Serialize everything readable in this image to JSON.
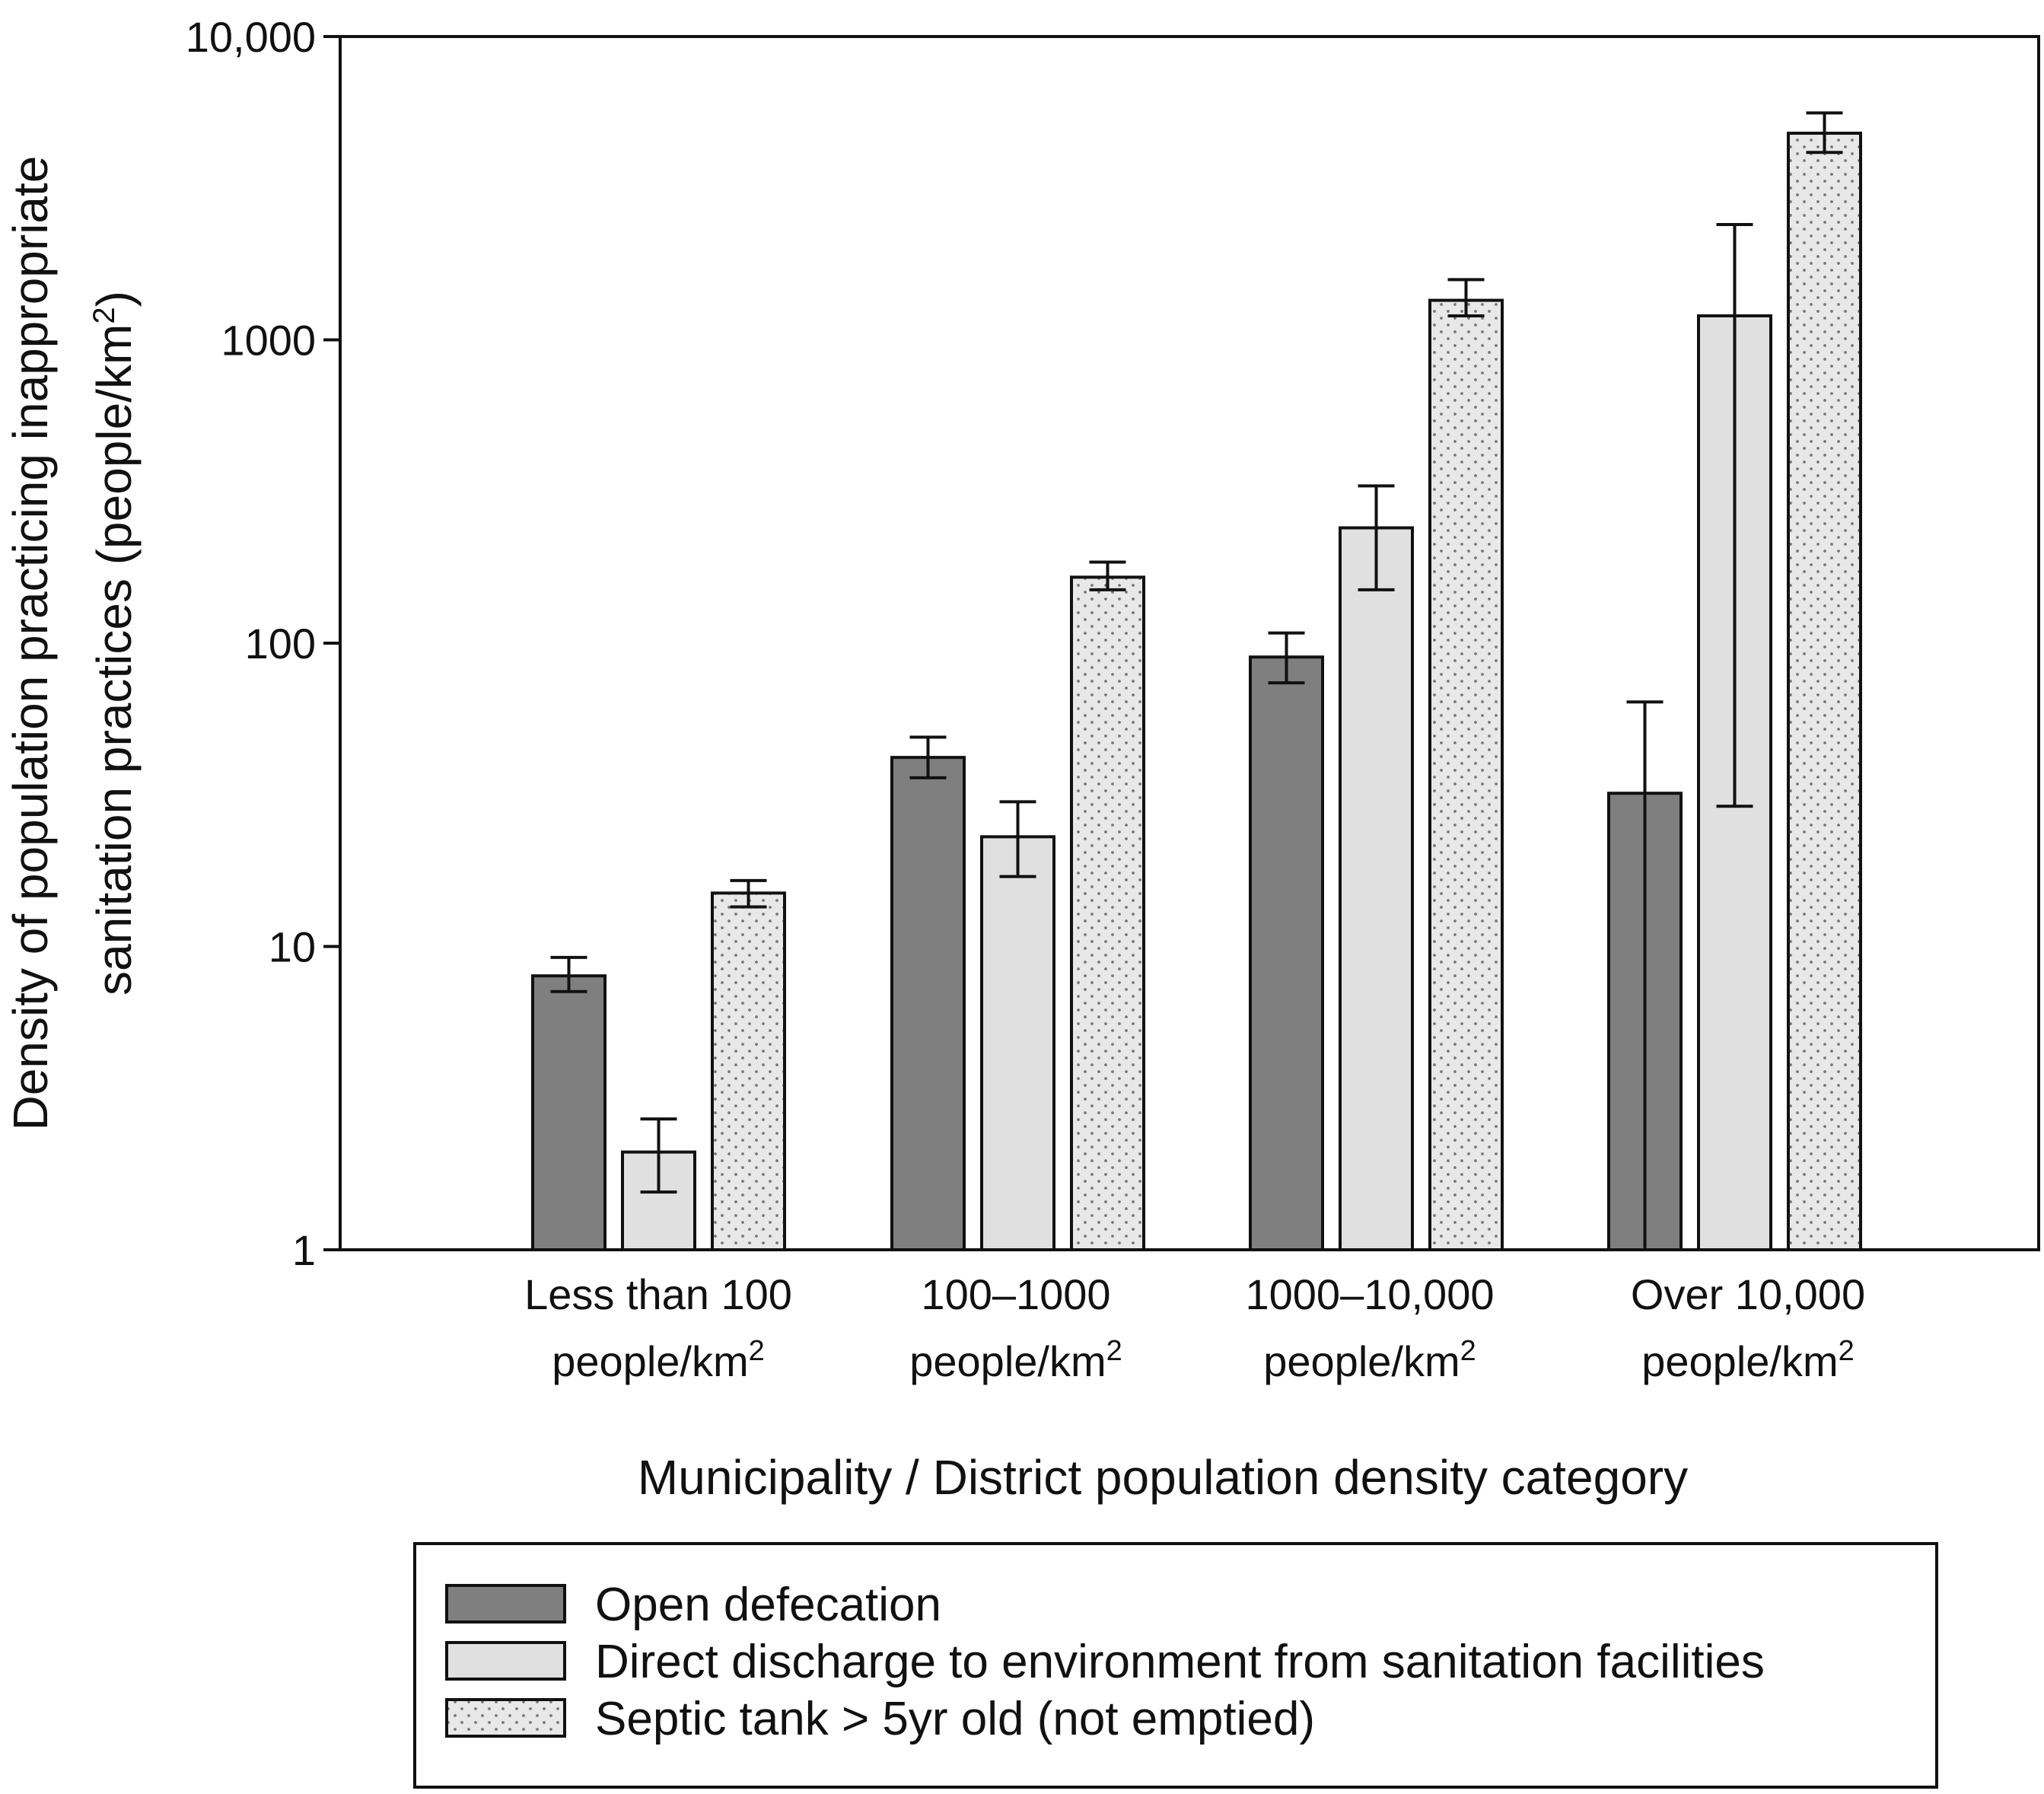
{
  "chart_data": {
    "type": "bar",
    "scale": "log",
    "title": "",
    "ylabel": {
      "line1": "Density of population practicing inappropriate",
      "line2_prefix": "sanitation practices (people/km",
      "line2_sup": "2",
      "line2_suffix": ")"
    },
    "xlabel": "Municipality / District population density category",
    "ylim": [
      1,
      10000
    ],
    "yticks": [
      {
        "value": 1,
        "label": "1"
      },
      {
        "value": 10,
        "label": "10"
      },
      {
        "value": 100,
        "label": "100"
      },
      {
        "value": 1000,
        "label": "1000"
      },
      {
        "value": 10000,
        "label": "10,000"
      }
    ],
    "categories": [
      {
        "line1": "Less than 100",
        "line2": "people/km",
        "sup": "2"
      },
      {
        "line1": "100–1000",
        "line2": "people/km",
        "sup": "2"
      },
      {
        "line1": "1000–10,000",
        "line2": "people/km",
        "sup": "2"
      },
      {
        "line1": "Over 10,000",
        "line2": "people/km",
        "sup": "2"
      }
    ],
    "series": [
      {
        "name": "Open defecation",
        "fill": "#7f7f7f",
        "pattern": "none",
        "values": [
          8,
          42,
          90,
          32
        ],
        "err_low": [
          7.1,
          36,
          74,
          1
        ],
        "err_high": [
          9.2,
          49,
          108,
          64
        ]
      },
      {
        "name": "Direct discharge to environment from sanitation facilities",
        "fill": "#e0e0e0",
        "pattern": "none",
        "values": [
          2.1,
          23,
          240,
          1200
        ],
        "err_low": [
          1.55,
          17,
          150,
          29
        ],
        "err_high": [
          2.7,
          30,
          330,
          2400
        ]
      },
      {
        "name": "Septic tank > 5yr old (not emptied)",
        "fill": "#e8e8e8",
        "pattern": "dots",
        "values": [
          15,
          165,
          1350,
          4800
        ],
        "err_low": [
          13.5,
          150,
          1200,
          4150
        ],
        "err_high": [
          16.5,
          185,
          1580,
          5600
        ]
      }
    ],
    "legend": "bottom"
  }
}
